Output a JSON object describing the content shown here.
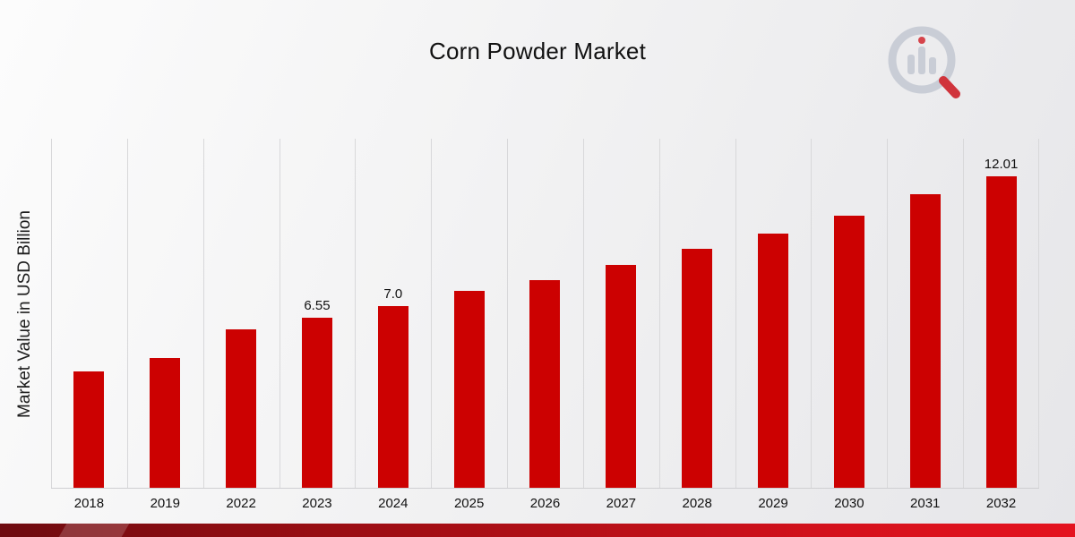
{
  "chart_data": {
    "type": "bar",
    "title": "Corn Powder Market",
    "ylabel": "Market Value in USD Billion",
    "xlabel": "",
    "categories": [
      "2018",
      "2019",
      "2022",
      "2023",
      "2024",
      "2025",
      "2026",
      "2027",
      "2028",
      "2029",
      "2030",
      "2031",
      "2032"
    ],
    "values": [
      4.5,
      5.0,
      6.1,
      6.55,
      7.0,
      7.6,
      8.0,
      8.6,
      9.2,
      9.8,
      10.5,
      11.3,
      12.01
    ],
    "data_labels": [
      "",
      "",
      "",
      "6.55",
      "7.0",
      "",
      "",
      "",
      "",
      "",
      "",
      "",
      "12.01"
    ],
    "bar_color": "#cc0101",
    "ylim": [
      0,
      13.45
    ],
    "grid": "vertical-category-separators",
    "legend": "none"
  },
  "logo": {
    "alt_name": "market-research-brand-logo"
  }
}
